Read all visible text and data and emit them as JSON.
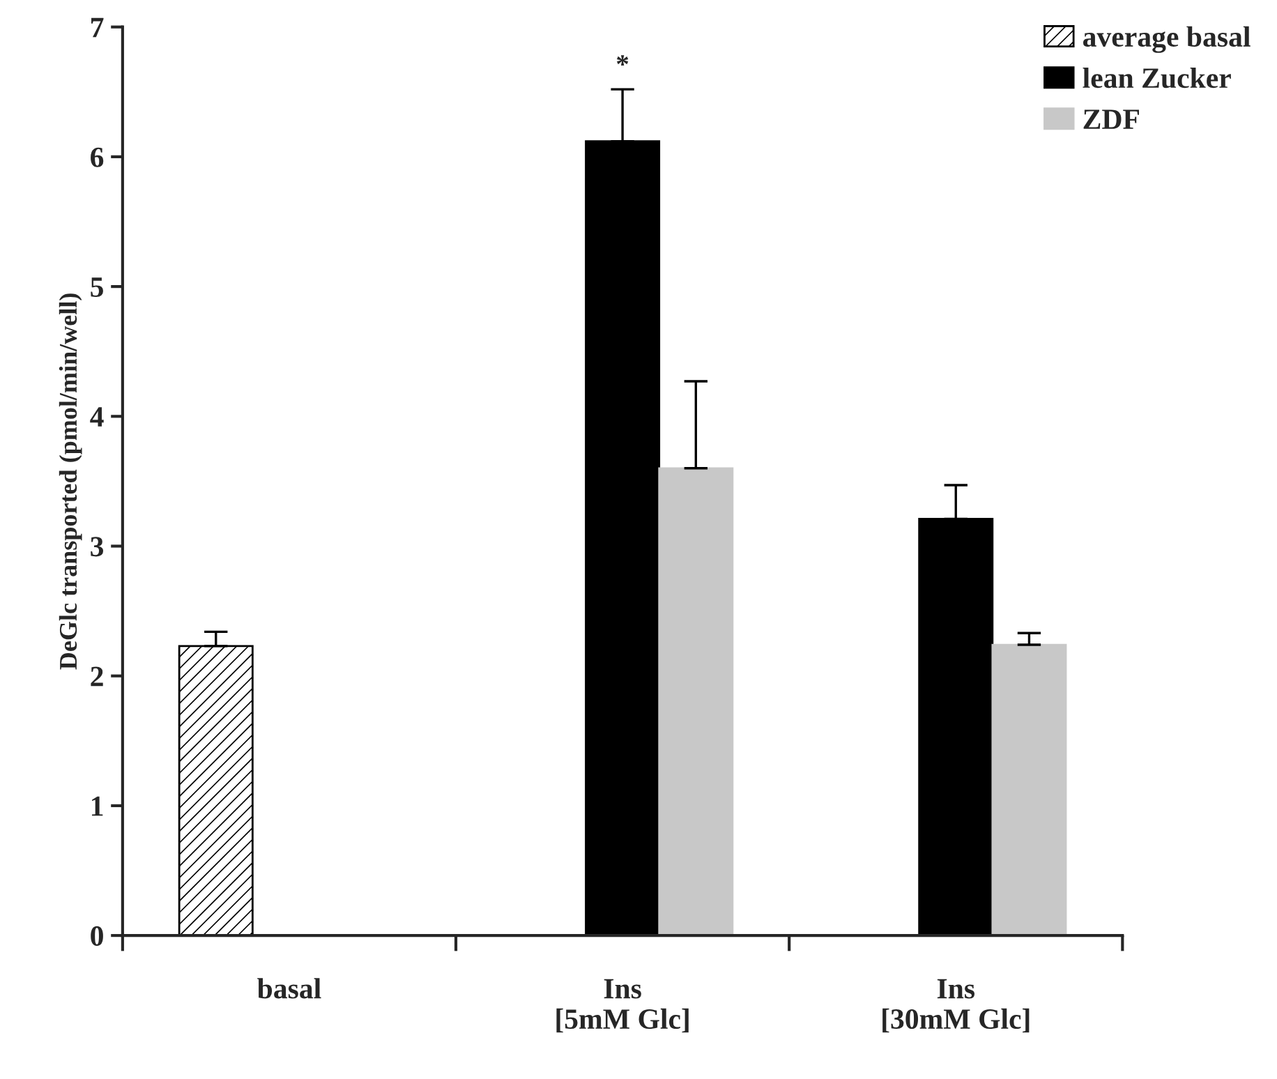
{
  "chart_data": {
    "type": "bar",
    "ylabel": "DeGlc transported (pmol/min/well)",
    "categories": [
      "basal",
      "Ins\n[5mM Glc]",
      "Ins\n[30mM Glc]"
    ],
    "series": [
      {
        "name": "average basal",
        "color": "#000000",
        "values": [
          2.23,
          null,
          null
        ],
        "errors": [
          0.11,
          null,
          null
        ]
      },
      {
        "name": "lean Zucker",
        "color": "#000000",
        "values": [
          null,
          6.12,
          3.21
        ],
        "errors": [
          null,
          0.4,
          0.26
        ]
      },
      {
        "name": "ZDF",
        "color": "#c8c8c8",
        "values": [
          null,
          3.6,
          2.24
        ],
        "errors": [
          null,
          0.67,
          0.09
        ]
      }
    ],
    "ylim": [
      0,
      7
    ],
    "yticks": [
      0,
      1,
      2,
      3,
      4,
      5,
      6,
      7
    ],
    "grid": false,
    "legend": "top right",
    "annotations": [
      "*"
    ]
  }
}
